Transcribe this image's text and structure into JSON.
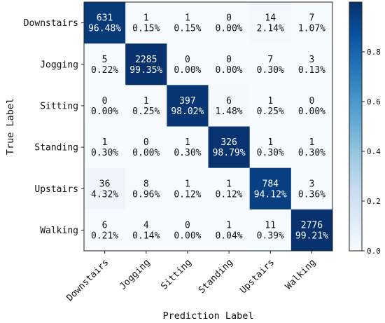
{
  "chart_data": {
    "type": "heatmap",
    "xlabel": "Prediction Label",
    "ylabel": "True Label",
    "row_labels": [
      "Downstairs",
      "Jogging",
      "Sitting",
      "Standing",
      "Upstairs",
      "Walking"
    ],
    "col_labels": [
      "Downstairs",
      "Jogging",
      "Sitting",
      "Standing",
      "Upstairs",
      "Walking"
    ],
    "counts": [
      [
        631,
        1,
        1,
        0,
        14,
        7
      ],
      [
        5,
        2285,
        0,
        0,
        7,
        3
      ],
      [
        0,
        1,
        397,
        6,
        1,
        0
      ],
      [
        1,
        0,
        1,
        326,
        1,
        1
      ],
      [
        36,
        8,
        1,
        1,
        784,
        3
      ],
      [
        6,
        4,
        0,
        1,
        11,
        2776
      ]
    ],
    "percents": [
      [
        "96.48%",
        "0.15%",
        "0.15%",
        "0.00%",
        "2.14%",
        "1.07%"
      ],
      [
        "0.22%",
        "99.35%",
        "0.00%",
        "0.00%",
        "0.30%",
        "0.13%"
      ],
      [
        "0.00%",
        "0.25%",
        "98.02%",
        "1.48%",
        "0.25%",
        "0.00%"
      ],
      [
        "0.30%",
        "0.00%",
        "0.30%",
        "98.79%",
        "0.30%",
        "0.30%"
      ],
      [
        "4.32%",
        "0.96%",
        "0.12%",
        "0.12%",
        "94.12%",
        "0.36%"
      ],
      [
        "0.21%",
        "0.14%",
        "0.00%",
        "0.04%",
        "0.39%",
        "99.21%"
      ]
    ],
    "colorbar": {
      "range": [
        0,
        1
      ],
      "ticks": [
        0.0,
        0.2,
        0.4,
        0.6,
        0.8
      ],
      "tick_labels": [
        "0.0",
        "0.2",
        "0.4",
        "0.6",
        "0.8"
      ],
      "colormap": "Blues",
      "low_color": "#f7fbff",
      "high_color": "#08306b"
    }
  }
}
